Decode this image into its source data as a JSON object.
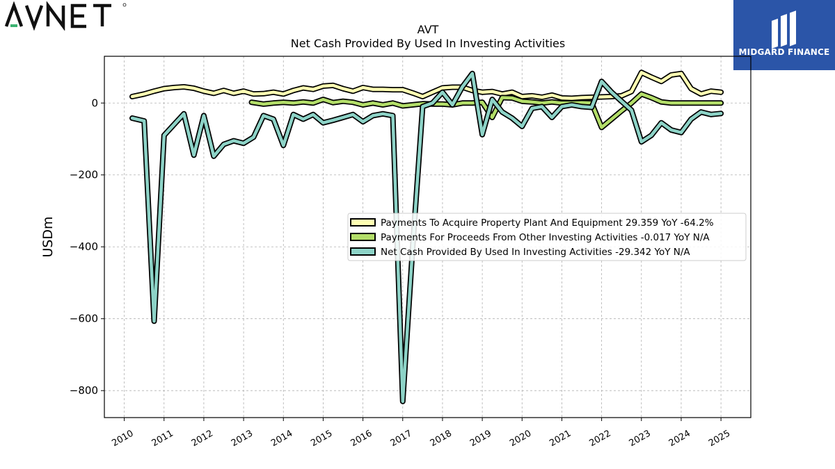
{
  "header": {
    "logo_text": "AVNET",
    "brand_name": "MIDGARD FINANCE"
  },
  "colors": {
    "series_ppe": "#ffffb3",
    "series_other": "#b3de69",
    "series_net": "#8dd3c7",
    "outline": "#000000",
    "grid": "#b0b0b0",
    "brand_bg": "#2b55a8",
    "logo_accent": "#3cb371"
  },
  "chart_data": {
    "type": "line",
    "title": "AVT",
    "subtitle": "Net Cash Provided By Used In Investing Activities",
    "xlabel": "",
    "ylabel": "USDm",
    "xlim": [
      2009.5,
      2025.75
    ],
    "ylim": [
      -875,
      130
    ],
    "grid": true,
    "legend_position": "center-right",
    "x_ticks": [
      2010,
      2011,
      2012,
      2013,
      2014,
      2015,
      2016,
      2017,
      2018,
      2019,
      2020,
      2021,
      2022,
      2023,
      2024,
      2025
    ],
    "y_ticks": [
      0,
      -200,
      -400,
      -600,
      -800
    ],
    "y_tick_labels": [
      "0",
      "−200",
      "−400",
      "−600",
      "−800"
    ],
    "series": [
      {
        "name": "Payments To Acquire Property Plant And Equipment  29.359 YoY -64.2%",
        "color_key": "series_ppe",
        "points": [
          [
            2010.2,
            18
          ],
          [
            2010.5,
            25
          ],
          [
            2010.75,
            33
          ],
          [
            2011.0,
            40
          ],
          [
            2011.25,
            43
          ],
          [
            2011.5,
            45
          ],
          [
            2011.75,
            41
          ],
          [
            2012.0,
            33
          ],
          [
            2012.25,
            27
          ],
          [
            2012.5,
            35
          ],
          [
            2012.75,
            27
          ],
          [
            2013.0,
            33
          ],
          [
            2013.25,
            25
          ],
          [
            2013.5,
            26
          ],
          [
            2013.75,
            30
          ],
          [
            2014.0,
            25
          ],
          [
            2014.25,
            35
          ],
          [
            2014.5,
            42
          ],
          [
            2014.75,
            38
          ],
          [
            2015.0,
            47
          ],
          [
            2015.25,
            49
          ],
          [
            2015.5,
            40
          ],
          [
            2015.75,
            33
          ],
          [
            2016.0,
            43
          ],
          [
            2016.25,
            38
          ],
          [
            2016.5,
            38
          ],
          [
            2016.75,
            37
          ],
          [
            2017.0,
            37
          ],
          [
            2017.25,
            28
          ],
          [
            2017.5,
            18
          ],
          [
            2017.75,
            30
          ],
          [
            2018.0,
            42
          ],
          [
            2018.25,
            44
          ],
          [
            2018.5,
            44
          ],
          [
            2018.75,
            35
          ],
          [
            2019.0,
            30
          ],
          [
            2019.25,
            32
          ],
          [
            2019.5,
            25
          ],
          [
            2019.75,
            30
          ],
          [
            2020.0,
            18
          ],
          [
            2020.25,
            20
          ],
          [
            2020.5,
            16
          ],
          [
            2020.75,
            22
          ],
          [
            2021.0,
            14
          ],
          [
            2021.25,
            13
          ],
          [
            2021.5,
            15
          ],
          [
            2021.75,
            16
          ],
          [
            2022.0,
            17
          ],
          [
            2022.25,
            18
          ],
          [
            2022.5,
            20
          ],
          [
            2022.75,
            32
          ],
          [
            2023.0,
            85
          ],
          [
            2023.25,
            72
          ],
          [
            2023.5,
            60
          ],
          [
            2023.75,
            78
          ],
          [
            2024.0,
            82
          ],
          [
            2024.25,
            40
          ],
          [
            2024.5,
            25
          ],
          [
            2024.75,
            33
          ],
          [
            2025.0,
            30
          ]
        ]
      },
      {
        "name": "Payments For Proceeds From Other Investing Activities  -0.017 YoY N/A",
        "color_key": "series_other",
        "points": [
          [
            2013.2,
            2
          ],
          [
            2013.5,
            -3
          ],
          [
            2013.75,
            0
          ],
          [
            2014.0,
            2
          ],
          [
            2014.25,
            0
          ],
          [
            2014.5,
            3
          ],
          [
            2014.75,
            0
          ],
          [
            2015.0,
            10
          ],
          [
            2015.25,
            1
          ],
          [
            2015.5,
            5
          ],
          [
            2015.75,
            2
          ],
          [
            2016.0,
            -5
          ],
          [
            2016.25,
            0
          ],
          [
            2016.5,
            -5
          ],
          [
            2016.75,
            0
          ],
          [
            2017.0,
            -8
          ],
          [
            2017.25,
            -5
          ],
          [
            2017.5,
            -2
          ],
          [
            2017.75,
            -3
          ],
          [
            2018.0,
            -3
          ],
          [
            2018.25,
            -5
          ],
          [
            2018.5,
            0
          ],
          [
            2018.75,
            0
          ],
          [
            2019.0,
            2
          ],
          [
            2019.25,
            -40
          ],
          [
            2019.5,
            15
          ],
          [
            2019.75,
            14
          ],
          [
            2020.0,
            5
          ],
          [
            2020.25,
            3
          ],
          [
            2020.5,
            0
          ],
          [
            2020.75,
            3
          ],
          [
            2021.0,
            0
          ],
          [
            2021.25,
            0
          ],
          [
            2021.5,
            1
          ],
          [
            2021.75,
            0
          ],
          [
            2022.0,
            -68
          ],
          [
            2022.25,
            -45
          ],
          [
            2022.5,
            -22
          ],
          [
            2022.75,
            0
          ],
          [
            2023.0,
            25
          ],
          [
            2023.25,
            15
          ],
          [
            2023.5,
            3
          ],
          [
            2023.75,
            0
          ],
          [
            2024.0,
            0
          ],
          [
            2024.25,
            0
          ],
          [
            2024.5,
            0
          ],
          [
            2024.75,
            0
          ],
          [
            2025.0,
            0
          ]
        ]
      },
      {
        "name": "Net Cash Provided By Used In Investing Activities  -29.342 YoY N/A",
        "color_key": "series_net",
        "points": [
          [
            2010.2,
            -42
          ],
          [
            2010.5,
            -50
          ],
          [
            2010.75,
            -607
          ],
          [
            2011.0,
            -90
          ],
          [
            2011.25,
            -60
          ],
          [
            2011.5,
            -30
          ],
          [
            2011.75,
            -145
          ],
          [
            2012.0,
            -35
          ],
          [
            2012.25,
            -148
          ],
          [
            2012.5,
            -115
          ],
          [
            2012.75,
            -105
          ],
          [
            2013.0,
            -112
          ],
          [
            2013.25,
            -95
          ],
          [
            2013.5,
            -35
          ],
          [
            2013.75,
            -45
          ],
          [
            2014.0,
            -118
          ],
          [
            2014.25,
            -32
          ],
          [
            2014.5,
            -45
          ],
          [
            2014.75,
            -32
          ],
          [
            2015.0,
            -55
          ],
          [
            2015.25,
            -48
          ],
          [
            2015.5,
            -40
          ],
          [
            2015.75,
            -32
          ],
          [
            2016.0,
            -52
          ],
          [
            2016.25,
            -35
          ],
          [
            2016.5,
            -30
          ],
          [
            2016.75,
            -35
          ],
          [
            2017.0,
            -830
          ],
          [
            2017.25,
            -400
          ],
          [
            2017.5,
            -10
          ],
          [
            2017.75,
            0
          ],
          [
            2018.0,
            30
          ],
          [
            2018.25,
            -5
          ],
          [
            2018.5,
            45
          ],
          [
            2018.75,
            82
          ],
          [
            2019.0,
            -88
          ],
          [
            2019.25,
            10
          ],
          [
            2019.5,
            -25
          ],
          [
            2019.75,
            -42
          ],
          [
            2020.0,
            -65
          ],
          [
            2020.25,
            -15
          ],
          [
            2020.5,
            -10
          ],
          [
            2020.75,
            -40
          ],
          [
            2021.0,
            -10
          ],
          [
            2021.25,
            -5
          ],
          [
            2021.5,
            -10
          ],
          [
            2021.75,
            -12
          ],
          [
            2022.0,
            60
          ],
          [
            2022.25,
            30
          ],
          [
            2022.5,
            5
          ],
          [
            2022.75,
            -20
          ],
          [
            2023.0,
            -108
          ],
          [
            2023.25,
            -90
          ],
          [
            2023.5,
            -55
          ],
          [
            2023.75,
            -75
          ],
          [
            2024.0,
            -82
          ],
          [
            2024.25,
            -45
          ],
          [
            2024.5,
            -25
          ],
          [
            2024.75,
            -32
          ],
          [
            2025.0,
            -29
          ]
        ]
      }
    ]
  }
}
